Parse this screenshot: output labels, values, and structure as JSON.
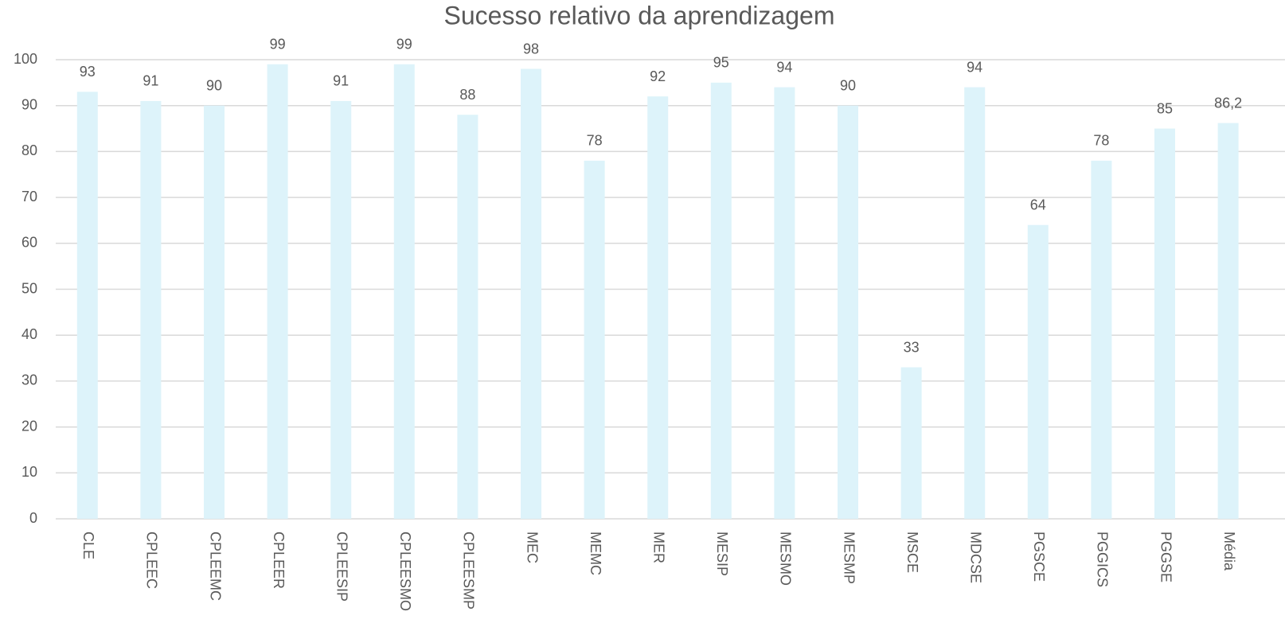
{
  "chart_data": {
    "type": "bar",
    "title": "Sucesso relativo da aprendizagem",
    "categories": [
      "CLE",
      "CPLEEC",
      "CPLEEMC",
      "CPLEER",
      "CPLEESIP",
      "CPLEESMO",
      "CPLEESMP",
      "MEC",
      "MEMC",
      "MER",
      "MESIP",
      "MESMO",
      "MESMP",
      "MSCE",
      "MDCSE",
      "PGSCE",
      "PGGICS",
      "PGGSE",
      "Média"
    ],
    "values": [
      93,
      91,
      90,
      99,
      91,
      99,
      88,
      98,
      78,
      92,
      95,
      94,
      90,
      33,
      94,
      64,
      78,
      85,
      86.2
    ],
    "value_labels": [
      "93",
      "91",
      "90",
      "99",
      "91",
      "99",
      "88",
      "98",
      "78",
      "92",
      "95",
      "94",
      "90",
      "33",
      "94",
      "64",
      "78",
      "85",
      "86,2"
    ],
    "color": "#ddf3fa",
    "ylim": [
      0,
      100
    ],
    "yticks": [
      0,
      10,
      20,
      30,
      40,
      50,
      60,
      70,
      80,
      90,
      100
    ],
    "grid": true
  }
}
